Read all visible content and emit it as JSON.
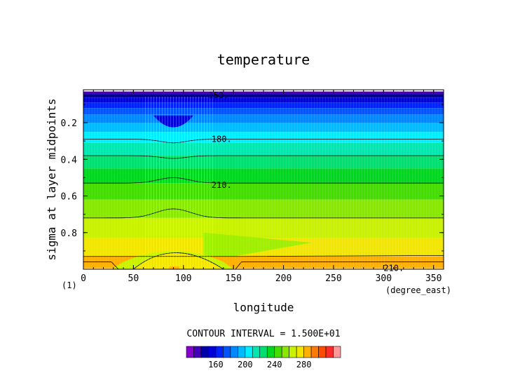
{
  "chart_data": {
    "type": "contour",
    "title": "temperature",
    "xlabel": "longitude",
    "xunit": "(degree_east)",
    "ylabel": "sigma at layer midpoints",
    "corner_label": "(1)",
    "xlim": [
      0,
      360
    ],
    "ylim": [
      0.02,
      1.0
    ],
    "y_inverted": true,
    "x_ticks": [
      "0",
      "50",
      "100",
      "150",
      "200",
      "250",
      "300",
      "350"
    ],
    "y_ticks": [
      "0.2",
      "0.4",
      "0.6",
      "0.8"
    ],
    "contour_interval_text": "CONTOUR INTERVAL = 1.500E+01",
    "contour_interval": 15,
    "contour_labels": [
      {
        "text": "150.",
        "lon": 125,
        "sigma": 0.05
      },
      {
        "text": "180.",
        "lon": 128,
        "sigma": 0.29
      },
      {
        "text": "210.",
        "lon": 128,
        "sigma": 0.54
      },
      {
        "text": "210.",
        "lon": 300,
        "sigma": 0.995
      }
    ],
    "colorbar": {
      "tick_labels": [
        "160",
        "200",
        "240",
        "280"
      ],
      "colors": [
        "#8800cc",
        "#4400bb",
        "#0000a8",
        "#0000d8",
        "#0022ff",
        "#0055ff",
        "#0088ff",
        "#00bbff",
        "#00eeff",
        "#00e8b0",
        "#00e070",
        "#00d820",
        "#44dd00",
        "#88e800",
        "#c8f200",
        "#f2e600",
        "#ffb000",
        "#ff7a00",
        "#ff4a00",
        "#ff2a2a",
        "#ff9999"
      ]
    },
    "levels_sigma": [
      0.03,
      0.045,
      0.065,
      0.09,
      0.12,
      0.155,
      0.2,
      0.25,
      0.31,
      0.38,
      0.45,
      0.53,
      0.62,
      0.72,
      0.83,
      0.93,
      0.995
    ],
    "lat_band_colors": [
      "#8800cc",
      "#4400bb",
      "#0000a8",
      "#0000d8",
      "#0022ff",
      "#0055ff",
      "#0088ff",
      "#00bbff",
      "#00eeff",
      "#00e8b0",
      "#00e070",
      "#00d820",
      "#44dd00",
      "#88e800",
      "#c8f200",
      "#f2e600",
      "#ffb000"
    ]
  }
}
